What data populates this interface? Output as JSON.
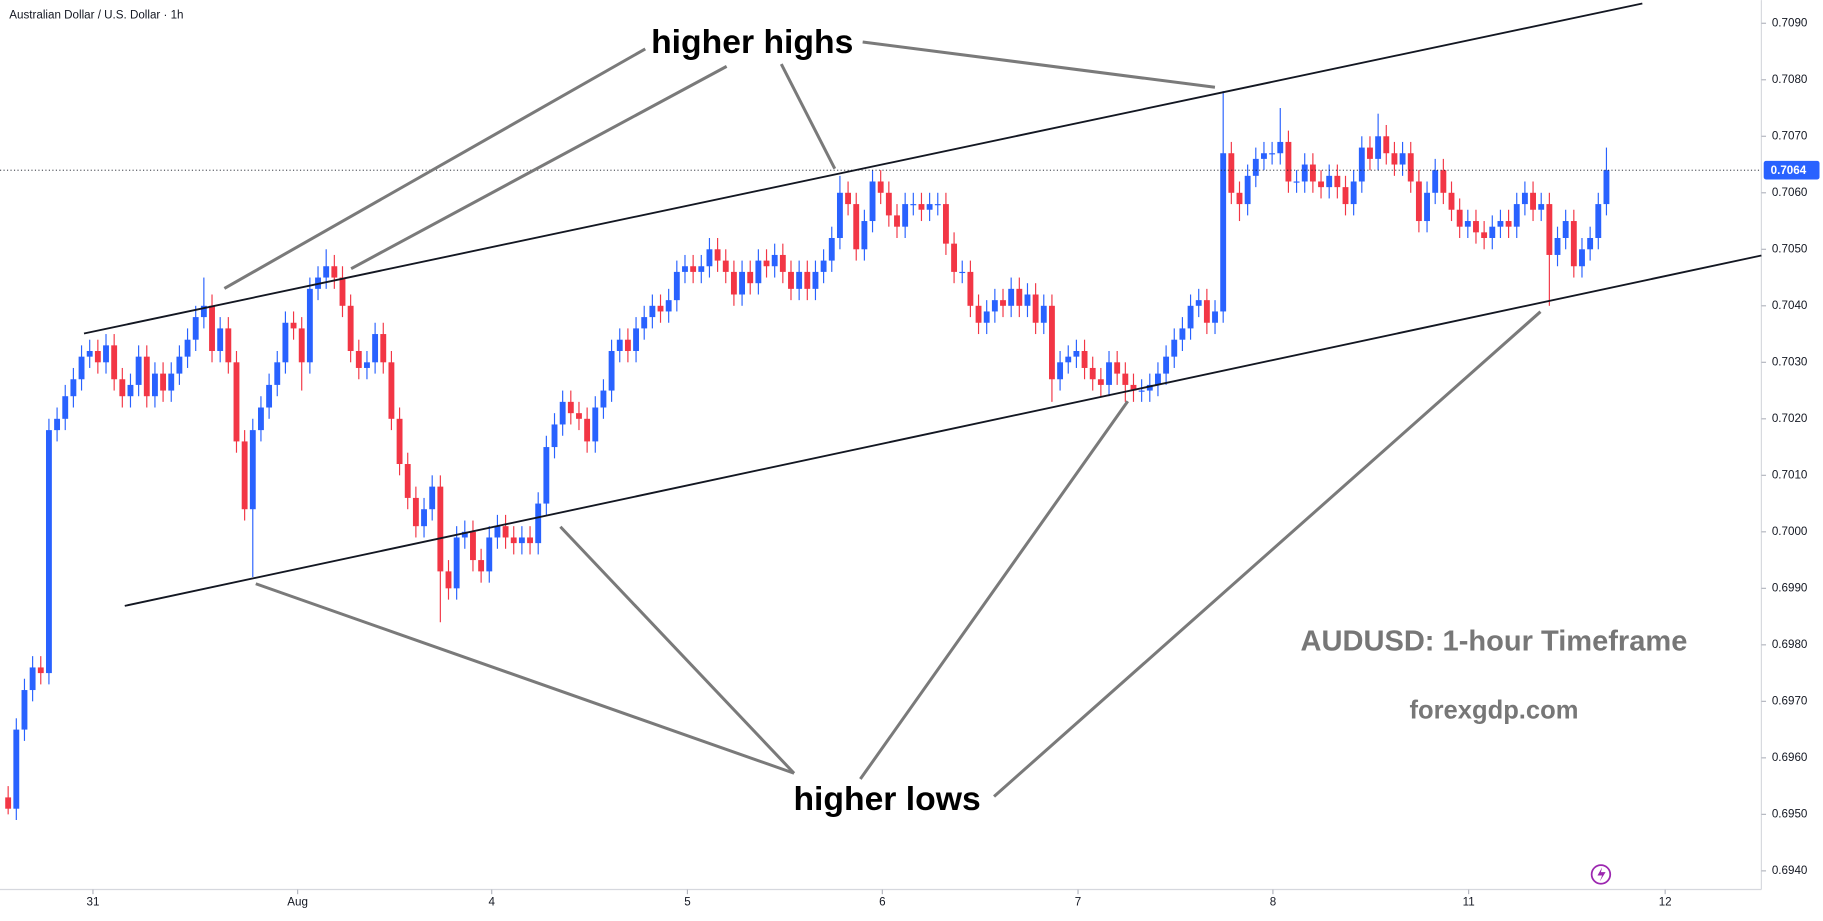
{
  "chart_data": {
    "type": "candlestick",
    "title": "Australian Dollar / U.S. Dollar · 1h",
    "up_color": "#2962ff",
    "down_color": "#f23645",
    "open": [
      0.6953,
      0.6951,
      0.6965,
      0.6972,
      0.6976,
      0.6975,
      0.7018,
      0.702,
      0.7024,
      0.7027,
      0.7031,
      0.7032,
      0.703,
      0.7033,
      0.7027,
      0.7024,
      0.7026,
      0.7031,
      0.7024,
      0.7028,
      0.7025,
      0.7028,
      0.7031,
      0.7034,
      0.7038,
      0.704,
      0.7032,
      0.7036,
      0.703,
      0.7016,
      0.7004,
      0.7018,
      0.7022,
      0.7026,
      0.703,
      0.7037,
      0.7036,
      0.703,
      0.7043,
      0.7045,
      0.7047,
      0.7045,
      0.704,
      0.7032,
      0.7029,
      0.703,
      0.7035,
      0.703,
      0.702,
      0.7012,
      0.7006,
      0.7001,
      0.7004,
      0.7008,
      0.6993,
      0.699,
      0.6999,
      0.7,
      0.6995,
      0.6993,
      0.6999,
      0.7001,
      0.6999,
      0.6998,
      0.6999,
      0.6998,
      0.7005,
      0.7015,
      0.7019,
      0.7023,
      0.7021,
      0.702,
      0.7016,
      0.7022,
      0.7025,
      0.7032,
      0.7034,
      0.7032,
      0.7036,
      0.7038,
      0.704,
      0.7039,
      0.7041,
      0.7046,
      0.7047,
      0.7046,
      0.7047,
      0.705,
      0.7048,
      0.7046,
      0.7042,
      0.7046,
      0.7044,
      0.7048,
      0.7047,
      0.7049,
      0.7046,
      0.7043,
      0.7046,
      0.7043,
      0.7046,
      0.7048,
      0.7052,
      0.706,
      0.7058,
      0.705,
      0.7055,
      0.7062,
      0.706,
      0.7056,
      0.7054,
      0.7058,
      0.7058,
      0.7057,
      0.7058,
      0.7058,
      0.7051,
      0.7046,
      0.7046,
      0.704,
      0.7037,
      0.7039,
      0.7041,
      0.704,
      0.7043,
      0.704,
      0.7042,
      0.7037,
      0.704,
      0.7027,
      0.703,
      0.7031,
      0.7032,
      0.7029,
      0.7027,
      0.7026,
      0.703,
      0.7028,
      0.7026,
      0.7025,
      0.7025,
      0.7026,
      0.7028,
      0.7031,
      0.7034,
      0.7036,
      0.704,
      0.7041,
      0.7037,
      0.7039,
      0.7067,
      0.706,
      0.7058,
      0.7063,
      0.7066,
      0.7067,
      0.7067,
      0.7069,
      0.7062,
      0.7062,
      0.7065,
      0.7062,
      0.7061,
      0.7063,
      0.7061,
      0.7058,
      0.7062,
      0.7068,
      0.7066,
      0.707,
      0.7067,
      0.7065,
      0.7067,
      0.7062,
      0.7055,
      0.706,
      0.7064,
      0.706,
      0.7057,
      0.7054,
      0.7055,
      0.7053,
      0.7052,
      0.7054,
      0.7055,
      0.7054,
      0.7058,
      0.706,
      0.7057,
      0.7058,
      0.7049,
      0.7052,
      0.7055,
      0.7047,
      0.705,
      0.7052,
      0.7058
    ],
    "high": [
      0.6955,
      0.6967,
      0.6974,
      0.6978,
      0.6978,
      0.702,
      0.7022,
      0.7026,
      0.7029,
      0.7033,
      0.7034,
      0.7034,
      0.7035,
      0.7035,
      0.7029,
      0.7028,
      0.7033,
      0.7033,
      0.703,
      0.703,
      0.703,
      0.7033,
      0.7036,
      0.704,
      0.7045,
      0.7042,
      0.7038,
      0.7038,
      0.7032,
      0.7018,
      0.702,
      0.7024,
      0.7028,
      0.7032,
      0.7039,
      0.7039,
      0.7038,
      0.7045,
      0.7047,
      0.705,
      0.7049,
      0.7047,
      0.7042,
      0.7034,
      0.7032,
      0.7037,
      0.7037,
      0.7032,
      0.7022,
      0.7014,
      0.7008,
      0.7006,
      0.701,
      0.701,
      0.6995,
      0.7001,
      0.7002,
      0.7002,
      0.6997,
      0.7001,
      0.7003,
      0.7003,
      0.7001,
      0.7001,
      0.7001,
      0.7007,
      0.7017,
      0.7021,
      0.7025,
      0.7025,
      0.7023,
      0.7022,
      0.7024,
      0.7027,
      0.7034,
      0.7036,
      0.7036,
      0.7038,
      0.704,
      0.7042,
      0.7042,
      0.7043,
      0.7048,
      0.7049,
      0.7049,
      0.7049,
      0.7052,
      0.7052,
      0.705,
      0.7048,
      0.7048,
      0.7048,
      0.705,
      0.705,
      0.7051,
      0.7051,
      0.7048,
      0.7048,
      0.7048,
      0.7048,
      0.705,
      0.7054,
      0.7063,
      0.7062,
      0.706,
      0.7057,
      0.7064,
      0.7064,
      0.7062,
      0.7058,
      0.706,
      0.706,
      0.706,
      0.706,
      0.706,
      0.706,
      0.7053,
      0.7048,
      0.7048,
      0.7042,
      0.7041,
      0.7043,
      0.7043,
      0.7045,
      0.7045,
      0.7044,
      0.7044,
      0.7042,
      0.7042,
      0.7032,
      0.7033,
      0.7034,
      0.7034,
      0.7031,
      0.7029,
      0.7032,
      0.7032,
      0.703,
      0.7028,
      0.7027,
      0.7028,
      0.703,
      0.7033,
      0.7036,
      0.7038,
      0.7042,
      0.7043,
      0.7043,
      0.7041,
      0.7078,
      0.7069,
      0.7062,
      0.7065,
      0.7068,
      0.7069,
      0.7069,
      0.7075,
      0.7071,
      0.7064,
      0.7067,
      0.7067,
      0.7064,
      0.7065,
      0.7065,
      0.7063,
      0.7064,
      0.707,
      0.707,
      0.7074,
      0.7072,
      0.7069,
      0.7069,
      0.7069,
      0.7064,
      0.7062,
      0.7066,
      0.7066,
      0.7062,
      0.7059,
      0.7057,
      0.7057,
      0.7055,
      0.7056,
      0.7057,
      0.7057,
      0.706,
      0.7062,
      0.7062,
      0.706,
      0.706,
      0.7054,
      0.7057,
      0.7057,
      0.7052,
      0.7054,
      0.706,
      0.7068
    ],
    "low": [
      0.695,
      0.6949,
      0.6963,
      0.697,
      0.6973,
      0.6973,
      0.7016,
      0.7018,
      0.7022,
      0.7025,
      0.7029,
      0.7028,
      0.7028,
      0.7025,
      0.7022,
      0.7022,
      0.7024,
      0.7022,
      0.7022,
      0.7023,
      0.7023,
      0.7026,
      0.7029,
      0.7032,
      0.7036,
      0.703,
      0.703,
      0.7028,
      0.7014,
      0.7002,
      0.6992,
      0.7016,
      0.702,
      0.7024,
      0.7028,
      0.7034,
      0.7025,
      0.7028,
      0.7041,
      0.7043,
      0.7043,
      0.7038,
      0.703,
      0.7027,
      0.7027,
      0.7028,
      0.7028,
      0.7018,
      0.701,
      0.7004,
      0.6999,
      0.6999,
      0.7002,
      0.6984,
      0.6988,
      0.6988,
      0.6997,
      0.6993,
      0.6991,
      0.6991,
      0.6997,
      0.6997,
      0.6996,
      0.6996,
      0.6996,
      0.6996,
      0.7003,
      0.7013,
      0.7017,
      0.7019,
      0.7018,
      0.7014,
      0.7014,
      0.702,
      0.7023,
      0.703,
      0.703,
      0.703,
      0.7034,
      0.7036,
      0.7037,
      0.7037,
      0.7039,
      0.7044,
      0.7044,
      0.7044,
      0.7045,
      0.7046,
      0.7044,
      0.704,
      0.704,
      0.7042,
      0.7042,
      0.7045,
      0.7045,
      0.7044,
      0.7041,
      0.7041,
      0.7041,
      0.7041,
      0.7044,
      0.7046,
      0.705,
      0.7056,
      0.7048,
      0.7048,
      0.7053,
      0.7058,
      0.7054,
      0.7052,
      0.7052,
      0.7056,
      0.7055,
      0.7055,
      0.7056,
      0.7049,
      0.7044,
      0.7044,
      0.7038,
      0.7035,
      0.7035,
      0.7037,
      0.7038,
      0.7038,
      0.7038,
      0.7038,
      0.7035,
      0.7035,
      0.7023,
      0.7025,
      0.7028,
      0.7029,
      0.7027,
      0.7025,
      0.7024,
      0.7024,
      0.7026,
      0.7023,
      0.7023,
      0.7023,
      0.7023,
      0.7024,
      0.7026,
      0.7029,
      0.7032,
      0.7034,
      0.7038,
      0.7035,
      0.7035,
      0.7037,
      0.7058,
      0.7055,
      0.7056,
      0.7061,
      0.7064,
      0.7065,
      0.7065,
      0.706,
      0.706,
      0.706,
      0.706,
      0.7059,
      0.7059,
      0.7059,
      0.7056,
      0.7056,
      0.706,
      0.7064,
      0.7064,
      0.7065,
      0.7063,
      0.7063,
      0.706,
      0.7053,
      0.7053,
      0.7058,
      0.7058,
      0.7055,
      0.7052,
      0.7052,
      0.7051,
      0.705,
      0.705,
      0.7052,
      0.7052,
      0.7052,
      0.7056,
      0.7055,
      0.7055,
      0.704,
      0.7047,
      0.705,
      0.7045,
      0.7045,
      0.7048,
      0.705,
      0.7056
    ],
    "close": [
      0.6951,
      0.6965,
      0.6972,
      0.6976,
      0.6975,
      0.7018,
      0.702,
      0.7024,
      0.7027,
      0.7031,
      0.7032,
      0.703,
      0.7033,
      0.7027,
      0.7024,
      0.7026,
      0.7031,
      0.7024,
      0.7028,
      0.7025,
      0.7028,
      0.7031,
      0.7034,
      0.7038,
      0.704,
      0.7032,
      0.7036,
      0.703,
      0.7016,
      0.7004,
      0.7018,
      0.7022,
      0.7026,
      0.703,
      0.7037,
      0.7036,
      0.703,
      0.7043,
      0.7045,
      0.7047,
      0.7045,
      0.704,
      0.7032,
      0.7029,
      0.703,
      0.7035,
      0.703,
      0.702,
      0.7012,
      0.7006,
      0.7001,
      0.7004,
      0.7008,
      0.6993,
      0.699,
      0.6999,
      0.7,
      0.6995,
      0.6993,
      0.6999,
      0.7001,
      0.6999,
      0.6998,
      0.6999,
      0.6998,
      0.7005,
      0.7015,
      0.7019,
      0.7023,
      0.7021,
      0.702,
      0.7016,
      0.7022,
      0.7025,
      0.7032,
      0.7034,
      0.7032,
      0.7036,
      0.7038,
      0.704,
      0.7039,
      0.7041,
      0.7046,
      0.7047,
      0.7046,
      0.7047,
      0.705,
      0.7048,
      0.7046,
      0.7042,
      0.7046,
      0.7044,
      0.7048,
      0.7047,
      0.7049,
      0.7046,
      0.7043,
      0.7046,
      0.7043,
      0.7046,
      0.7048,
      0.7052,
      0.706,
      0.7058,
      0.705,
      0.7055,
      0.7062,
      0.706,
      0.7056,
      0.7054,
      0.7058,
      0.7058,
      0.7057,
      0.7058,
      0.7058,
      0.7051,
      0.7046,
      0.7046,
      0.704,
      0.7037,
      0.7039,
      0.7041,
      0.704,
      0.7043,
      0.704,
      0.7042,
      0.7037,
      0.704,
      0.7027,
      0.703,
      0.7031,
      0.7032,
      0.7029,
      0.7027,
      0.7026,
      0.703,
      0.7028,
      0.7026,
      0.7025,
      0.7025,
      0.7026,
      0.7028,
      0.7031,
      0.7034,
      0.7036,
      0.704,
      0.7041,
      0.7037,
      0.7039,
      0.7067,
      0.706,
      0.7058,
      0.7063,
      0.7066,
      0.7067,
      0.7067,
      0.7069,
      0.7062,
      0.7062,
      0.7065,
      0.7062,
      0.7061,
      0.7063,
      0.7061,
      0.7058,
      0.7062,
      0.7068,
      0.7066,
      0.707,
      0.7067,
      0.7065,
      0.7067,
      0.7062,
      0.7055,
      0.706,
      0.7064,
      0.706,
      0.7057,
      0.7054,
      0.7055,
      0.7053,
      0.7052,
      0.7054,
      0.7055,
      0.7054,
      0.7058,
      0.706,
      0.7057,
      0.7058,
      0.7049,
      0.7052,
      0.7055,
      0.7047,
      0.705,
      0.7052,
      0.7058,
      0.7064
    ],
    "xlim": [
      -1,
      215
    ],
    "xticks": [
      {
        "value": 10.4,
        "label": "31"
      },
      {
        "value": 35.5,
        "label": "Aug"
      },
      {
        "value": 59.3,
        "label": "4"
      },
      {
        "value": 83.3,
        "label": "5"
      },
      {
        "value": 107.2,
        "label": "6"
      },
      {
        "value": 131.2,
        "label": "7"
      },
      {
        "value": 155.1,
        "label": "8"
      },
      {
        "value": 179.1,
        "label": "11"
      },
      {
        "value": 203.2,
        "label": "12"
      }
    ],
    "ylim": [
      0.69367,
      0.70941
    ],
    "yticks": [
      {
        "value": 0.694,
        "label": "0.6940"
      },
      {
        "value": 0.695,
        "label": "0.6950"
      },
      {
        "value": 0.696,
        "label": "0.6960"
      },
      {
        "value": 0.697,
        "label": "0.6970"
      },
      {
        "value": 0.698,
        "label": "0.6980"
      },
      {
        "value": 0.699,
        "label": "0.6990"
      },
      {
        "value": 0.7,
        "label": "0.7000"
      },
      {
        "value": 0.701,
        "label": "0.7010"
      },
      {
        "value": 0.702,
        "label": "0.7020"
      },
      {
        "value": 0.703,
        "label": "0.7030"
      },
      {
        "value": 0.704,
        "label": "0.7040"
      },
      {
        "value": 0.705,
        "label": "0.7050"
      },
      {
        "value": 0.706,
        "label": "0.7060"
      },
      {
        "value": 0.707,
        "label": "0.7070"
      },
      {
        "value": 0.708,
        "label": "0.7080"
      },
      {
        "value": 0.709,
        "label": "0.7090"
      }
    ],
    "last_price": 0.7064,
    "trendlines": [
      {
        "x": [
          9.3,
          200.4
        ],
        "y": [
          0.70351,
          0.70935
        ]
      },
      {
        "x": [
          14.3,
          215
        ],
        "y": [
          0.69869,
          0.70489
        ]
      }
    ],
    "annotations": {
      "higher_highs": "higher highs",
      "higher_lows": "higher lows",
      "timeframe": "AUDUSD: 1-hour Timeframe",
      "site": "forexgdp.com"
    }
  }
}
